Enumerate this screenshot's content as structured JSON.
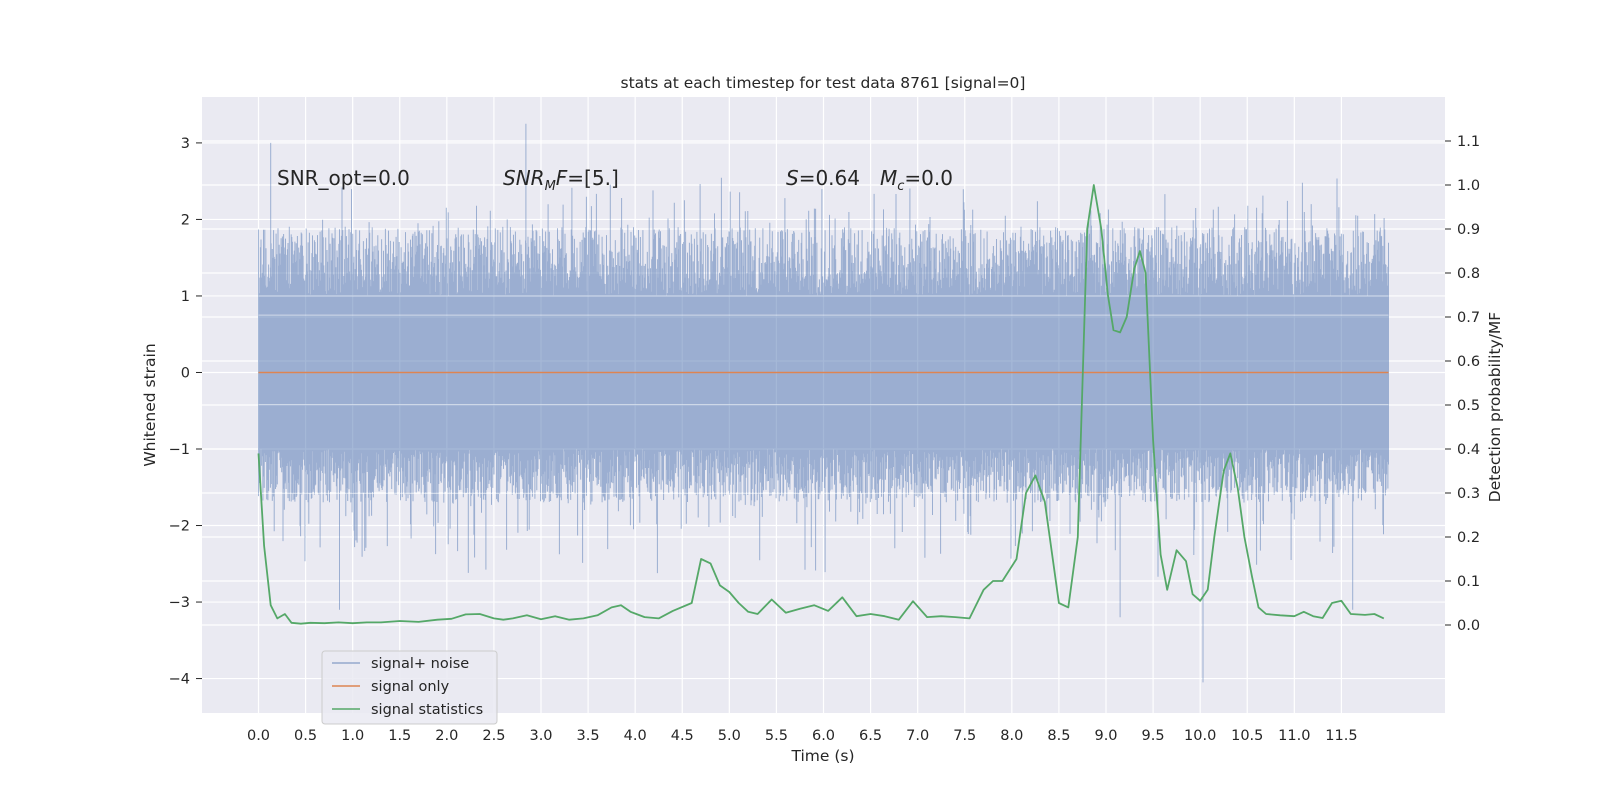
{
  "chart_data": {
    "type": "line",
    "title": "stats at each timestep for test data 8761 [signal=0]",
    "xlabel": "Time (s)",
    "ylabel_left": "Whitened strain",
    "ylabel_right": "Detection probability/MF",
    "xlim": [
      -0.6,
      12.6
    ],
    "ylim_left": [
      -4.45,
      3.6
    ],
    "ylim_right": [
      -0.2,
      1.2
    ],
    "x_ticks": [
      "0.0",
      "0.5",
      "1.0",
      "1.5",
      "2.0",
      "2.5",
      "3.0",
      "3.5",
      "4.0",
      "4.5",
      "5.0",
      "5.5",
      "6.0",
      "6.5",
      "7.0",
      "7.5",
      "8.0",
      "8.5",
      "9.0",
      "9.5",
      "10.0",
      "10.5",
      "11.0",
      "11.5"
    ],
    "y_ticks_left": [
      "3",
      "2",
      "1",
      "0",
      "−1",
      "−2",
      "−3",
      "−4"
    ],
    "y_ticks_right": [
      "1.1",
      "1.0",
      "0.9",
      "0.8",
      "0.7",
      "0.6",
      "0.5",
      "0.4",
      "0.3",
      "0.2",
      "0.1",
      "0.0"
    ],
    "grid": true,
    "legend_position": "lower-left",
    "annotations": {
      "snr_opt": "SNR_opt=0.0",
      "snr_mf_main": "SNR",
      "snr_mf_sub": "M",
      "snr_mf_rest": "F=[5.]",
      "s_main": "S",
      "s_rest": "=0.64",
      "mc_main": "M",
      "mc_sub": "c",
      "mc_rest": "=0.0"
    },
    "colors": {
      "background": "#eaeaf2",
      "grid": "#ffffff",
      "noise": "#4c72b0",
      "signal_only": "#dd8452",
      "statistics": "#55a868",
      "text": "#262626"
    },
    "noise_series": {
      "name": "signal+ noise",
      "x_range": [
        0.0,
        12.0
      ],
      "typical_range": [
        -1.5,
        1.9
      ],
      "extremes": [
        {
          "x": 0.13,
          "y": 3.0
        },
        {
          "x": 2.84,
          "y": 3.25
        },
        {
          "x": 0.86,
          "y": -3.1
        },
        {
          "x": 9.15,
          "y": -3.2
        },
        {
          "x": 10.03,
          "y": -4.05
        },
        {
          "x": 11.62,
          "y": -3.1
        }
      ]
    },
    "series": [
      {
        "name": "signal only",
        "axis": "left",
        "x": [
          0.0,
          12.0
        ],
        "y": [
          0.0,
          0.0
        ]
      },
      {
        "name": "signal statistics",
        "axis": "right",
        "x": [
          0.0,
          0.06,
          0.13,
          0.2,
          0.28,
          0.35,
          0.45,
          0.55,
          0.7,
          0.85,
          1.0,
          1.15,
          1.3,
          1.5,
          1.7,
          1.9,
          2.05,
          2.2,
          2.35,
          2.5,
          2.6,
          2.7,
          2.85,
          3.0,
          3.15,
          3.3,
          3.45,
          3.6,
          3.75,
          3.85,
          3.95,
          4.1,
          4.25,
          4.4,
          4.6,
          4.7,
          4.8,
          4.9,
          5.0,
          5.1,
          5.2,
          5.3,
          5.45,
          5.6,
          5.75,
          5.9,
          6.05,
          6.2,
          6.35,
          6.5,
          6.65,
          6.8,
          6.95,
          7.1,
          7.25,
          7.4,
          7.55,
          7.7,
          7.8,
          7.9,
          8.05,
          8.15,
          8.25,
          8.35,
          8.5,
          8.6,
          8.7,
          8.8,
          8.87,
          8.95,
          9.02,
          9.08,
          9.15,
          9.22,
          9.3,
          9.36,
          9.42,
          9.5,
          9.58,
          9.65,
          9.75,
          9.85,
          9.92,
          10.0,
          10.08,
          10.15,
          10.25,
          10.32,
          10.4,
          10.47,
          10.55,
          10.62,
          10.7,
          10.85,
          11.0,
          11.1,
          11.2,
          11.3,
          11.4,
          11.5,
          11.6,
          11.75,
          11.85,
          11.95
        ],
        "y": [
          0.39,
          0.18,
          0.045,
          0.015,
          0.025,
          0.005,
          0.003,
          0.005,
          0.004,
          0.006,
          0.004,
          0.006,
          0.006,
          0.009,
          0.007,
          0.012,
          0.014,
          0.024,
          0.025,
          0.015,
          0.012,
          0.015,
          0.022,
          0.013,
          0.02,
          0.012,
          0.015,
          0.022,
          0.04,
          0.045,
          0.03,
          0.018,
          0.015,
          0.032,
          0.05,
          0.15,
          0.14,
          0.09,
          0.075,
          0.05,
          0.03,
          0.025,
          0.058,
          0.028,
          0.037,
          0.045,
          0.032,
          0.063,
          0.02,
          0.025,
          0.02,
          0.012,
          0.054,
          0.018,
          0.02,
          0.018,
          0.015,
          0.08,
          0.1,
          0.1,
          0.15,
          0.3,
          0.34,
          0.28,
          0.05,
          0.04,
          0.2,
          0.9,
          1.0,
          0.9,
          0.75,
          0.67,
          0.665,
          0.7,
          0.81,
          0.85,
          0.8,
          0.42,
          0.16,
          0.08,
          0.17,
          0.145,
          0.07,
          0.055,
          0.08,
          0.2,
          0.35,
          0.39,
          0.31,
          0.2,
          0.11,
          0.04,
          0.025,
          0.022,
          0.02,
          0.03,
          0.02,
          0.016,
          0.05,
          0.055,
          0.025,
          0.023,
          0.025,
          0.015
        ]
      }
    ]
  }
}
